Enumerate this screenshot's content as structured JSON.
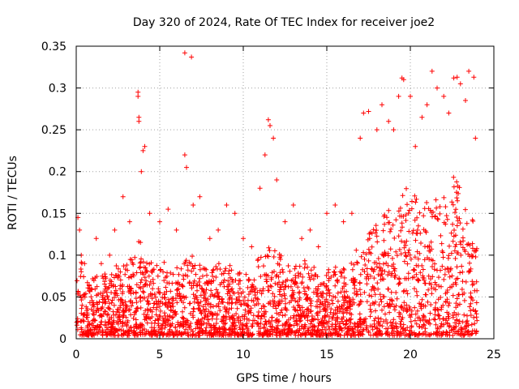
{
  "chart_data": {
    "type": "scatter",
    "title": "Day 320 of 2024, Rate Of TEC Index for receiver joe2",
    "xlabel": "GPS time / hours",
    "ylabel": "ROTI / TECUs",
    "xlim": [
      0,
      25
    ],
    "ylim": [
      0,
      0.35
    ],
    "xticks": [
      0,
      5,
      10,
      15,
      20,
      25
    ],
    "yticks": [
      0,
      0.05,
      0.1,
      0.15,
      0.2,
      0.25,
      0.3,
      0.35
    ],
    "xtick_labels": [
      "0",
      "5",
      "10",
      "15",
      "20",
      "25"
    ],
    "ytick_labels": [
      "0",
      "0.05",
      "0.1",
      "0.15",
      "0.2",
      "0.25",
      "0.3",
      "0.35"
    ],
    "grid": true,
    "marker": "+",
    "marker_color": "#ff0000",
    "series": [
      {
        "name": "ROTI",
        "points": [
          [
            0.1,
            0.145
          ],
          [
            0.2,
            0.13
          ],
          [
            0.3,
            0.1
          ],
          [
            0.5,
            0.09
          ],
          [
            0.8,
            0.06
          ],
          [
            1.2,
            0.12
          ],
          [
            1.5,
            0.09
          ],
          [
            2.0,
            0.1
          ],
          [
            2.3,
            0.13
          ],
          [
            2.8,
            0.17
          ],
          [
            3.2,
            0.14
          ],
          [
            3.7,
            0.295
          ],
          [
            3.7,
            0.29
          ],
          [
            3.75,
            0.265
          ],
          [
            3.75,
            0.26
          ],
          [
            3.9,
            0.2
          ],
          [
            4.0,
            0.225
          ],
          [
            4.1,
            0.23
          ],
          [
            4.4,
            0.15
          ],
          [
            5.0,
            0.14
          ],
          [
            5.5,
            0.155
          ],
          [
            6.0,
            0.13
          ],
          [
            6.5,
            0.342
          ],
          [
            6.9,
            0.337
          ],
          [
            6.5,
            0.22
          ],
          [
            6.6,
            0.205
          ],
          [
            7.0,
            0.16
          ],
          [
            7.4,
            0.17
          ],
          [
            8.0,
            0.12
          ],
          [
            8.5,
            0.13
          ],
          [
            9.0,
            0.16
          ],
          [
            9.5,
            0.15
          ],
          [
            10.0,
            0.12
          ],
          [
            10.5,
            0.11
          ],
          [
            11.0,
            0.18
          ],
          [
            11.3,
            0.22
          ],
          [
            11.5,
            0.262
          ],
          [
            11.6,
            0.255
          ],
          [
            11.8,
            0.24
          ],
          [
            12.0,
            0.19
          ],
          [
            12.5,
            0.14
          ],
          [
            13.0,
            0.16
          ],
          [
            13.5,
            0.12
          ],
          [
            14.0,
            0.13
          ],
          [
            14.5,
            0.11
          ],
          [
            15.0,
            0.15
          ],
          [
            15.5,
            0.16
          ],
          [
            16.0,
            0.14
          ],
          [
            16.5,
            0.15
          ],
          [
            17.0,
            0.24
          ],
          [
            17.2,
            0.27
          ],
          [
            17.5,
            0.272
          ],
          [
            18.0,
            0.25
          ],
          [
            18.3,
            0.28
          ],
          [
            18.7,
            0.26
          ],
          [
            19.0,
            0.25
          ],
          [
            19.3,
            0.29
          ],
          [
            19.5,
            0.312
          ],
          [
            19.6,
            0.31
          ],
          [
            20.0,
            0.29
          ],
          [
            20.3,
            0.23
          ],
          [
            20.7,
            0.265
          ],
          [
            21.0,
            0.28
          ],
          [
            21.3,
            0.32
          ],
          [
            21.6,
            0.3
          ],
          [
            22.0,
            0.29
          ],
          [
            22.3,
            0.27
          ],
          [
            22.6,
            0.312
          ],
          [
            22.8,
            0.313
          ],
          [
            23.0,
            0.305
          ],
          [
            23.3,
            0.285
          ],
          [
            23.5,
            0.32
          ],
          [
            23.8,
            0.313
          ],
          [
            23.9,
            0.24
          ],
          [
            0.4,
            0.05
          ],
          [
            1.0,
            0.03
          ],
          [
            5.2,
            0.08
          ],
          [
            9.8,
            0.06
          ],
          [
            14.8,
            0.04
          ],
          [
            20.5,
            0.07
          ],
          [
            23.6,
            0.05
          ]
        ],
        "dense_band": [
          [
            0.0,
            0.075
          ],
          [
            0.3,
            0.09
          ],
          [
            0.6,
            0.08
          ],
          [
            1.0,
            0.07
          ],
          [
            1.5,
            0.075
          ],
          [
            2.0,
            0.08
          ],
          [
            2.5,
            0.085
          ],
          [
            3.0,
            0.09
          ],
          [
            3.5,
            0.1
          ],
          [
            3.8,
            0.12
          ],
          [
            4.2,
            0.09
          ],
          [
            4.7,
            0.085
          ],
          [
            5.2,
            0.09
          ],
          [
            5.7,
            0.08
          ],
          [
            6.2,
            0.085
          ],
          [
            6.7,
            0.1
          ],
          [
            7.2,
            0.09
          ],
          [
            7.7,
            0.08
          ],
          [
            8.2,
            0.085
          ],
          [
            8.7,
            0.09
          ],
          [
            9.2,
            0.085
          ],
          [
            9.7,
            0.08
          ],
          [
            10.2,
            0.075
          ],
          [
            10.7,
            0.09
          ],
          [
            11.2,
            0.1
          ],
          [
            11.7,
            0.11
          ],
          [
            12.2,
            0.1
          ],
          [
            12.7,
            0.09
          ],
          [
            13.2,
            0.085
          ],
          [
            13.7,
            0.09
          ],
          [
            14.2,
            0.085
          ],
          [
            14.7,
            0.08
          ],
          [
            15.2,
            0.085
          ],
          [
            15.7,
            0.08
          ],
          [
            16.2,
            0.08
          ],
          [
            16.7,
            0.1
          ],
          [
            17.2,
            0.12
          ],
          [
            17.7,
            0.13
          ],
          [
            18.2,
            0.14
          ],
          [
            18.7,
            0.15
          ],
          [
            19.2,
            0.16
          ],
          [
            19.7,
            0.18
          ],
          [
            20.2,
            0.17
          ],
          [
            20.7,
            0.16
          ],
          [
            21.2,
            0.17
          ],
          [
            21.7,
            0.16
          ],
          [
            22.2,
            0.17
          ],
          [
            22.7,
            0.2
          ],
          [
            23.2,
            0.19
          ],
          [
            23.7,
            0.15
          ],
          [
            24.0,
            0.12
          ]
        ]
      }
    ]
  }
}
